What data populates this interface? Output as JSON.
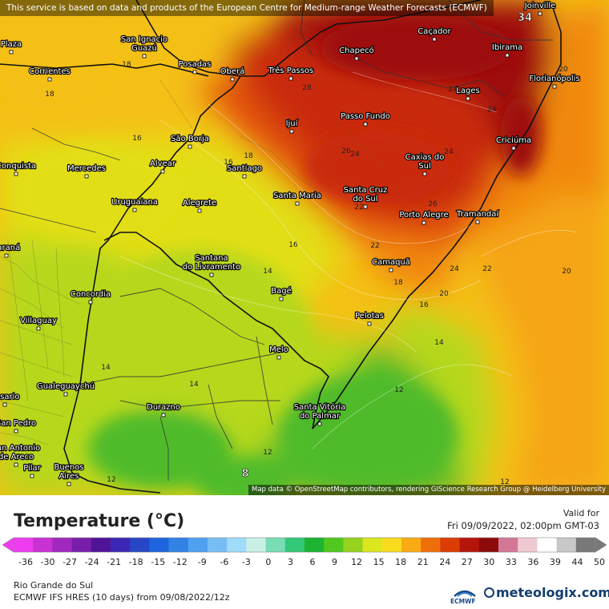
{
  "disclaimer": "This service is based on data and products of the European Centre for Medium-range Weather Forecasts (ECMWF)",
  "attribution": "Map data © OpenStreetMap contributors, rendering GIScience Research Group @ Heidelberg University",
  "legend": {
    "title": "Temperature (°C)",
    "valid_label": "Valid for",
    "valid_time": "Fri 09/09/2022, 02:00pm GMT-03",
    "region": "Rio Grande do Sul",
    "model_run": "ECMWF IFS HRES (10 days)  from  09/08/2022/12z",
    "ecmwf_logo_text": "ECMWF",
    "brand": "meteologix.com",
    "scale_ticks": [
      "-36",
      "-30",
      "-27",
      "-24",
      "-21",
      "-18",
      "-15",
      "-12",
      "-9",
      "-6",
      "-3",
      "0",
      "3",
      "6",
      "9",
      "12",
      "15",
      "18",
      "21",
      "24",
      "27",
      "30",
      "33",
      "36",
      "39",
      "44",
      "50"
    ],
    "scale_colors": [
      "#f03cf0",
      "#c832d2",
      "#a028be",
      "#781eaa",
      "#501496",
      "#3c28b4",
      "#2846c8",
      "#1e64dc",
      "#3282e6",
      "#50a0f0",
      "#78bef5",
      "#a0dcfa",
      "#c8f0e6",
      "#78dcb4",
      "#32c878",
      "#1eb432",
      "#50c81e",
      "#96d21e",
      "#dce61e",
      "#fadc1e",
      "#faaa14",
      "#f06e0a",
      "#dc3c05",
      "#b4140a",
      "#8c0a0a",
      "#d27896",
      "#f0c8d2",
      "#ffffff",
      "#c8c8c8",
      "#787878"
    ]
  },
  "map": {
    "color_stops": {
      "t12": "#4fbb2a",
      "t14": "#b6d81c",
      "t16": "#e2de18",
      "t18": "#f4c015",
      "t20": "#f5a512",
      "t22": "#f18810",
      "t24": "#e4540b",
      "t26": "#c92b0d",
      "t28": "#9e1010"
    },
    "cities": [
      {
        "name": "San Ignacio",
        "name2": "Guazú"
      },
      {
        "name": "Posadas"
      },
      {
        "name": "Oberá"
      },
      {
        "name": "Três Passos"
      },
      {
        "name": "Chapecó"
      },
      {
        "name": "Caçador"
      },
      {
        "name": "Joinville"
      },
      {
        "name": "Ibirama"
      },
      {
        "name": "Florianópolis"
      },
      {
        "name": "Corrientes"
      },
      {
        "name": "Lages"
      },
      {
        "name": "Ijuí"
      },
      {
        "name": "Passo Fundo"
      },
      {
        "name": "Criciúma"
      },
      {
        "name": "São Borja"
      },
      {
        "name": "Caxias do",
        "name2": "Sul"
      },
      {
        "name": "Alvear"
      },
      {
        "name": "Santiago"
      },
      {
        "name": "Mercedes"
      },
      {
        "name": "Santa Maria"
      },
      {
        "name": "Santa Cruz",
        "name2": "do Sul"
      },
      {
        "name": "Uruguaiana"
      },
      {
        "name": "Alegrete"
      },
      {
        "name": "Porto Alegre"
      },
      {
        "name": "Tramandaí"
      },
      {
        "name": "Santana",
        "name2": "do Livramento"
      },
      {
        "name": "Camaquã"
      },
      {
        "name": "Concordia"
      },
      {
        "name": "Bagé"
      },
      {
        "name": "Villaguay"
      },
      {
        "name": "Pelotas"
      },
      {
        "name": "Melo"
      },
      {
        "name": "Gualeguaychú"
      },
      {
        "name": "Santa Vitória",
        "name2": "do Palmar"
      },
      {
        "name": "Durazno"
      },
      {
        "name": "Buenos",
        "name2": "Aires"
      },
      {
        "name": "Pilar"
      },
      {
        "name": "San Antonio",
        "name2": "de Areco"
      },
      {
        "name": "San Pedro"
      },
      {
        "name": "Plaza"
      },
      {
        "name": "Conquista"
      },
      {
        "name": "Rosario"
      },
      {
        "name": "Paraná"
      }
    ],
    "contour_labels": [
      "34",
      "18",
      "18",
      "20",
      "24",
      "24",
      "28",
      "26",
      "24",
      "24",
      "16",
      "18",
      "22",
      "24",
      "26",
      "16",
      "16",
      "22",
      "18",
      "22",
      "20",
      "20",
      "14",
      "16",
      "14",
      "12",
      "14",
      "14",
      "12",
      "8",
      "12",
      "12"
    ]
  }
}
